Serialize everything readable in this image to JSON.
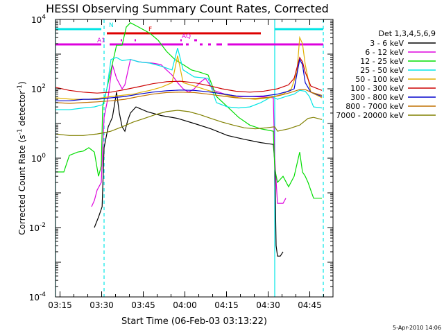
{
  "chart_data": {
    "type": "line",
    "title": "HESSI Observing Summary Count Rates, Corrected",
    "xlabel": "Start Time (06-Feb-03 03:13:22)",
    "ylabel_main": "Corrected Count Rate (s",
    "ylabel_sup1": "-1",
    "ylabel_mid": " detector",
    "ylabel_sup2": "-1",
    "ylabel_end": ")",
    "x_unit": "minutes after 03:13:22",
    "xlim": [
      0,
      100
    ],
    "ylim": [
      0.0001,
      10000
    ],
    "yscale": "log",
    "x_ticks": [
      "03:15",
      "03:30",
      "03:45",
      "04:00",
      "04:15",
      "04:30",
      "04:45"
    ],
    "x_tick_values": [
      1.63,
      16.63,
      31.63,
      46.63,
      61.63,
      76.63,
      91.63
    ],
    "y_ticks": [
      {
        "base": "10",
        "exp": "-4",
        "value": 0.0001
      },
      {
        "base": "10",
        "exp": "-2",
        "value": 0.01
      },
      {
        "base": "10",
        "exp": "0",
        "value": 1
      },
      {
        "base": "10",
        "exp": "2",
        "value": 100
      },
      {
        "base": "10",
        "exp": "4",
        "value": 10000
      }
    ],
    "legend_title": "Det 1,3,4,5,6,9",
    "legend_position": "right",
    "footer_date": "5-Apr-2010 14:06",
    "night_boundaries": [
      0,
      17.5,
      79,
      96.5
    ],
    "series": [
      {
        "name": "3 - 6 keV",
        "color": "#000000",
        "points": [
          [
            14.0,
            0.01
          ],
          [
            15.5,
            0.02
          ],
          [
            16.8,
            0.04
          ],
          [
            17.5,
            2
          ],
          [
            19,
            8
          ],
          [
            20.5,
            15
          ],
          [
            22,
            80
          ],
          [
            23,
            20
          ],
          [
            24,
            8
          ],
          [
            25,
            6
          ],
          [
            26,
            12
          ],
          [
            27,
            20
          ],
          [
            29,
            30
          ],
          [
            33,
            22
          ],
          [
            38,
            17
          ],
          [
            44,
            14
          ],
          [
            50,
            10
          ],
          [
            56,
            7
          ],
          [
            62,
            4.5
          ],
          [
            68,
            3.5
          ],
          [
            74,
            2.8
          ],
          [
            78.5,
            2.5
          ],
          [
            79,
            0.8
          ],
          [
            79.5,
            0.003
          ],
          [
            80,
            0.0015
          ],
          [
            81,
            0.0015
          ],
          [
            82,
            0.002
          ]
        ]
      },
      {
        "name": "6 - 12 keV",
        "color": "#dd00dd",
        "points": [
          [
            13,
            0.04
          ],
          [
            14,
            0.06
          ],
          [
            15,
            0.12
          ],
          [
            16.5,
            0.2
          ],
          [
            17.5,
            15
          ],
          [
            19,
            60
          ],
          [
            20.5,
            500
          ],
          [
            22,
            200
          ],
          [
            24,
            100
          ],
          [
            25,
            130
          ],
          [
            27,
            700
          ],
          [
            30,
            600
          ],
          [
            35,
            550
          ],
          [
            38,
            500
          ],
          [
            40,
            350
          ],
          [
            42,
            250
          ],
          [
            44,
            150
          ],
          [
            46,
            100
          ],
          [
            48,
            80
          ],
          [
            50,
            100
          ],
          [
            52,
            150
          ],
          [
            54,
            200
          ],
          [
            57,
            90
          ],
          [
            61,
            70
          ],
          [
            66,
            60
          ],
          [
            71,
            60
          ],
          [
            76,
            58
          ],
          [
            78.5,
            55
          ],
          [
            79,
            1.0
          ],
          [
            80,
            0.05
          ],
          [
            82,
            0.05
          ],
          [
            83,
            0.07
          ]
        ]
      },
      {
        "name": "12 - 25 keV",
        "color": "#00dd00",
        "points": [
          [
            0,
            0.4
          ],
          [
            3,
            0.4
          ],
          [
            5,
            1.2
          ],
          [
            8,
            1.5
          ],
          [
            10,
            1.6
          ],
          [
            12,
            2
          ],
          [
            14,
            1.5
          ],
          [
            15.5,
            0.3
          ],
          [
            16.5,
            0.6
          ],
          [
            17,
            30
          ],
          [
            18.5,
            100
          ],
          [
            20,
            350
          ],
          [
            22,
            1800
          ],
          [
            24,
            1800
          ],
          [
            25.5,
            6000
          ],
          [
            27,
            8000
          ],
          [
            30,
            6000
          ],
          [
            34,
            4000
          ],
          [
            37,
            2500
          ],
          [
            40,
            1200
          ],
          [
            43,
            700
          ],
          [
            46,
            500
          ],
          [
            49,
            350
          ],
          [
            52,
            300
          ],
          [
            55,
            250
          ],
          [
            58,
            60
          ],
          [
            62,
            30
          ],
          [
            66,
            15
          ],
          [
            70,
            9
          ],
          [
            74,
            7
          ],
          [
            78.5,
            6
          ],
          [
            79,
            0.5
          ],
          [
            80,
            0.2
          ],
          [
            82,
            0.3
          ],
          [
            84,
            0.15
          ],
          [
            86,
            0.3
          ],
          [
            88,
            1.5
          ],
          [
            89,
            0.4
          ],
          [
            90,
            0.3
          ],
          [
            91,
            0.2
          ],
          [
            93,
            0.07
          ],
          [
            96,
            0.07
          ]
        ]
      },
      {
        "name": "25 - 50 keV",
        "color": "#00e5e5",
        "points": [
          [
            0,
            25
          ],
          [
            5,
            25
          ],
          [
            10,
            28
          ],
          [
            14,
            30
          ],
          [
            17,
            35
          ],
          [
            18.5,
            100
          ],
          [
            20,
            700
          ],
          [
            22,
            800
          ],
          [
            24,
            650
          ],
          [
            27,
            700
          ],
          [
            30,
            600
          ],
          [
            34,
            550
          ],
          [
            38,
            450
          ],
          [
            42,
            350
          ],
          [
            44,
            1500
          ],
          [
            46,
            350
          ],
          [
            50,
            220
          ],
          [
            55,
            200
          ],
          [
            58,
            40
          ],
          [
            62,
            30
          ],
          [
            66,
            28
          ],
          [
            70,
            30
          ],
          [
            74,
            40
          ],
          [
            78,
            60
          ],
          [
            80,
            50
          ],
          [
            83,
            60
          ],
          [
            86,
            70
          ],
          [
            88,
            90
          ],
          [
            90,
            85
          ],
          [
            91.5,
            60
          ],
          [
            93,
            30
          ],
          [
            96,
            28
          ]
        ]
      },
      {
        "name": "50 - 100 keV",
        "color": "#e0b000",
        "points": [
          [
            0,
            55
          ],
          [
            6,
            50
          ],
          [
            12,
            50
          ],
          [
            17,
            55
          ],
          [
            20,
            60
          ],
          [
            24,
            65
          ],
          [
            28,
            70
          ],
          [
            31,
            80
          ],
          [
            34,
            90
          ],
          [
            38,
            110
          ],
          [
            42,
            150
          ],
          [
            44,
            900
          ],
          [
            46,
            150
          ],
          [
            50,
            120
          ],
          [
            55,
            90
          ],
          [
            60,
            70
          ],
          [
            66,
            55
          ],
          [
            72,
            50
          ],
          [
            77,
            55
          ],
          [
            82,
            70
          ],
          [
            85,
            100
          ],
          [
            87,
            300
          ],
          [
            88,
            3000
          ],
          [
            89,
            2000
          ],
          [
            90,
            500
          ],
          [
            92,
            80
          ],
          [
            96,
            55
          ]
        ]
      },
      {
        "name": "100 - 300 keV",
        "color": "#cc0000",
        "points": [
          [
            0,
            110
          ],
          [
            5,
            90
          ],
          [
            10,
            80
          ],
          [
            15,
            75
          ],
          [
            20,
            80
          ],
          [
            25,
            95
          ],
          [
            30,
            115
          ],
          [
            35,
            140
          ],
          [
            40,
            160
          ],
          [
            45,
            165
          ],
          [
            50,
            150
          ],
          [
            55,
            125
          ],
          [
            60,
            100
          ],
          [
            65,
            85
          ],
          [
            70,
            80
          ],
          [
            75,
            85
          ],
          [
            80,
            100
          ],
          [
            84,
            130
          ],
          [
            86,
            200
          ],
          [
            87,
            400
          ],
          [
            88,
            800
          ],
          [
            89,
            600
          ],
          [
            90,
            300
          ],
          [
            92,
            120
          ],
          [
            96,
            90
          ]
        ]
      },
      {
        "name": "300 - 800 keV",
        "color": "#0000cc",
        "points": [
          [
            0,
            45
          ],
          [
            5,
            45
          ],
          [
            10,
            50
          ],
          [
            15,
            50
          ],
          [
            20,
            55
          ],
          [
            25,
            60
          ],
          [
            30,
            70
          ],
          [
            35,
            80
          ],
          [
            40,
            88
          ],
          [
            45,
            92
          ],
          [
            50,
            90
          ],
          [
            55,
            82
          ],
          [
            60,
            72
          ],
          [
            65,
            62
          ],
          [
            70,
            60
          ],
          [
            75,
            62
          ],
          [
            80,
            70
          ],
          [
            84,
            85
          ],
          [
            86,
            100
          ],
          [
            88,
            700
          ],
          [
            89,
            500
          ],
          [
            90,
            150
          ],
          [
            92,
            80
          ],
          [
            96,
            60
          ]
        ]
      },
      {
        "name": "800 - 7000 keV",
        "color": "#c07000",
        "points": [
          [
            0,
            40
          ],
          [
            5,
            38
          ],
          [
            10,
            40
          ],
          [
            15,
            42
          ],
          [
            20,
            45
          ],
          [
            25,
            50
          ],
          [
            30,
            60
          ],
          [
            35,
            70
          ],
          [
            40,
            78
          ],
          [
            45,
            80
          ],
          [
            50,
            78
          ],
          [
            55,
            70
          ],
          [
            60,
            62
          ],
          [
            65,
            55
          ],
          [
            70,
            52
          ],
          [
            75,
            55
          ],
          [
            80,
            62
          ],
          [
            84,
            75
          ],
          [
            88,
            95
          ],
          [
            90,
            95
          ],
          [
            92,
            80
          ],
          [
            96,
            65
          ]
        ]
      },
      {
        "name": "7000 - 20000 keV",
        "color": "#808000",
        "points": [
          [
            0,
            5
          ],
          [
            5,
            4.5
          ],
          [
            10,
            4.5
          ],
          [
            15,
            5
          ],
          [
            18,
            5.5
          ],
          [
            20,
            6
          ],
          [
            24,
            8
          ],
          [
            28,
            11
          ],
          [
            32,
            14
          ],
          [
            36,
            18
          ],
          [
            40,
            22
          ],
          [
            44,
            24
          ],
          [
            48,
            22
          ],
          [
            52,
            18
          ],
          [
            56,
            14
          ],
          [
            60,
            11
          ],
          [
            64,
            9
          ],
          [
            68,
            7.5
          ],
          [
            72,
            7
          ],
          [
            76,
            7.5
          ],
          [
            79,
            8
          ],
          [
            80,
            6
          ],
          [
            84,
            7
          ],
          [
            88,
            9
          ],
          [
            91,
            14
          ],
          [
            93,
            15
          ],
          [
            96,
            13
          ]
        ]
      }
    ],
    "flag_bars": [
      {
        "label": "N",
        "color": "#00e5e5",
        "segments": [
          [
            0,
            16.5
          ],
          [
            79,
            96.5
          ]
        ]
      },
      {
        "label": "F",
        "color": "#dd0000",
        "segments": [
          [
            18.5,
            74
          ]
        ]
      },
      {
        "label": "AQ",
        "color": "#dd00dd",
        "segments": [
          [
            23.5,
            24
          ],
          [
            28.5,
            29
          ],
          [
            45,
            45.5
          ],
          [
            50,
            51
          ]
        ]
      },
      {
        "label": "A1",
        "color": "#dd00dd",
        "segments": [
          [
            0,
            16.5
          ],
          [
            19.5,
            46
          ],
          [
            47,
            48
          ],
          [
            52,
            53
          ],
          [
            55,
            56
          ],
          [
            58,
            60
          ],
          [
            62,
            96.5
          ]
        ]
      }
    ]
  }
}
